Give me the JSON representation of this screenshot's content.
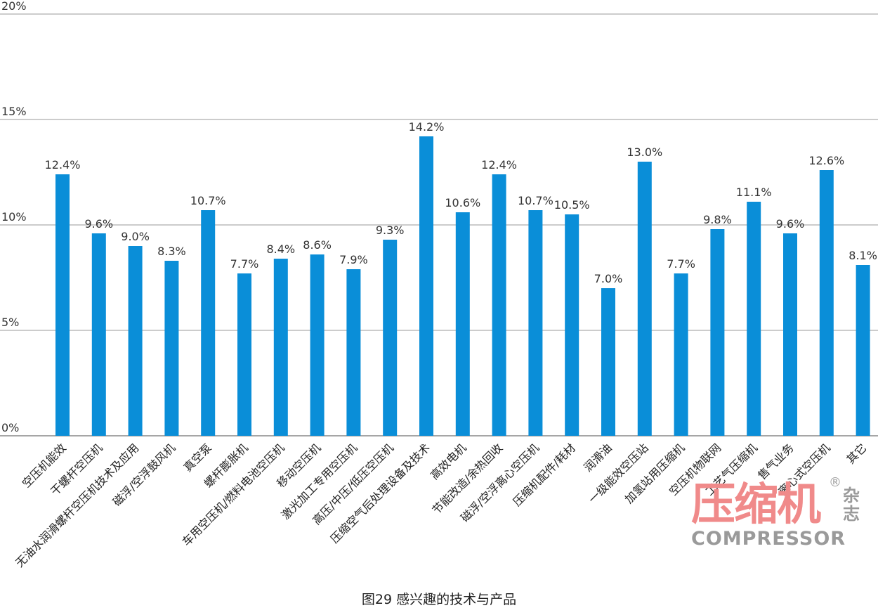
{
  "chart_data": {
    "type": "bar",
    "title": "图29 感兴趣的技术与产品",
    "ylim": [
      0,
      20
    ],
    "yticks": [
      "0%",
      "5%",
      "10%",
      "15%",
      "20%"
    ],
    "ytick_values": [
      0,
      5,
      10,
      15,
      20
    ],
    "grid": true,
    "bar_color": "#0a8ed8",
    "categories": [
      "空压机能效",
      "干螺杆空压机",
      "无油水润滑螺杆空压机技术及应用",
      "磁浮/空浮鼓风机",
      "真空泵",
      "螺杆膨胀机",
      "车用空压机/燃料电池空压机",
      "移动空压机",
      "激光加工专用空压机",
      "高压/中压/低压空压机",
      "压缩空气后处理设备及技术",
      "高效电机",
      "节能改造/余热回收",
      "磁浮/空浮离心空压机",
      "压缩机配件/耗材",
      "润滑油",
      "一级能效空压站",
      "加氢站用压缩机",
      "空压机物联网",
      "工艺气压缩机",
      "售气业务",
      "离心式空压机",
      "其它"
    ],
    "values": [
      12.4,
      9.6,
      9.0,
      8.3,
      10.7,
      7.7,
      8.4,
      8.6,
      7.9,
      9.3,
      14.2,
      10.6,
      12.4,
      10.7,
      10.5,
      7.0,
      13.0,
      7.7,
      9.8,
      11.1,
      9.6,
      12.6,
      8.1
    ],
    "data_labels": [
      "12.4%",
      "9.6%",
      "9.0%",
      "8.3%",
      "10.7%",
      "7.7%",
      "8.4%",
      "8.6%",
      "7.9%",
      "9.3%",
      "14.2%",
      "10.6%",
      "12.4%",
      "10.7%",
      "10.5%",
      "7.0%",
      "13.0%",
      "7.7%",
      "9.8%",
      "11.1%",
      "9.6%",
      "12.6%",
      "8.1%"
    ]
  },
  "watermark": {
    "cn": "压缩机",
    "cn_sub": "杂志",
    "en": "COMPRESSOR",
    "reg": "®"
  }
}
